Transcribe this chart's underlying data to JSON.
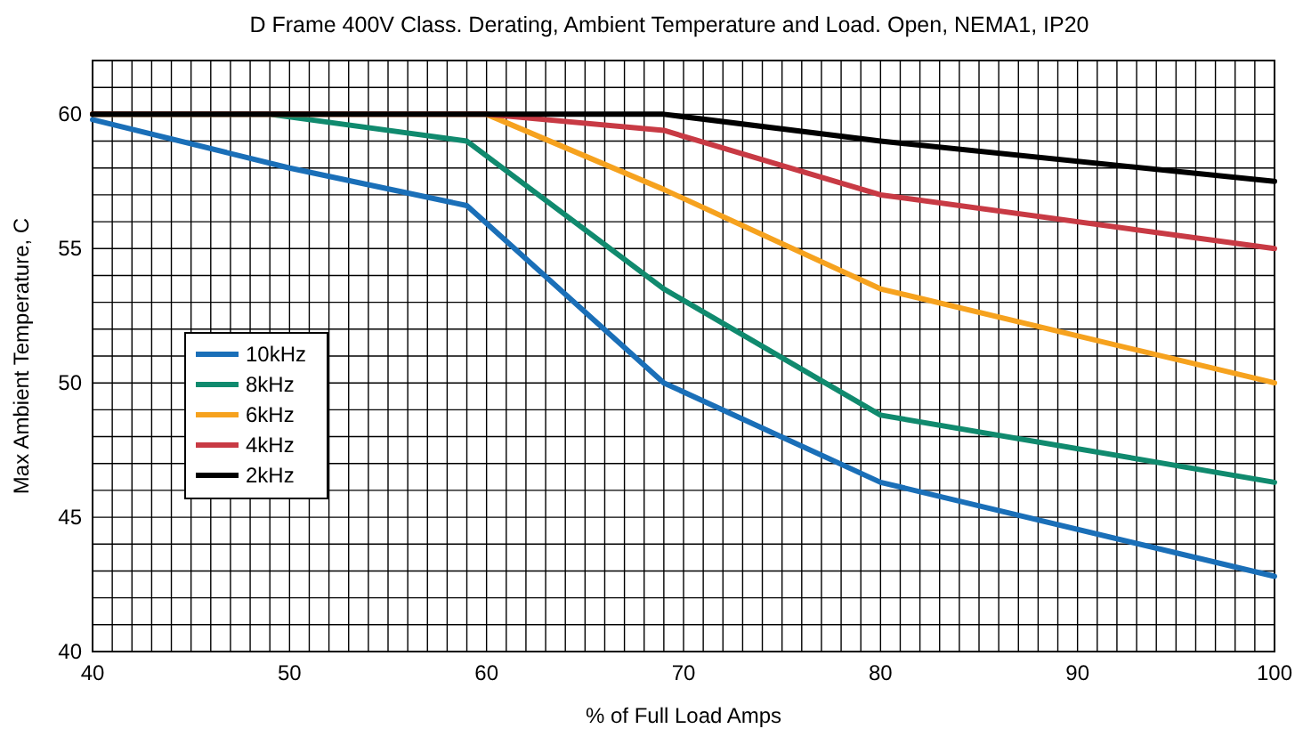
{
  "chart_data": {
    "type": "line",
    "title": "D Frame 400V Class. Derating, Ambient Temperature and Load. Open, NEMA1, IP20",
    "xlabel": "% of Full Load Amps",
    "ylabel": "Max Ambient Temperature, C",
    "xlim": [
      40,
      100
    ],
    "ylim": [
      40,
      62
    ],
    "xticks": [
      40,
      {
        "value": 41,
        "label": null
      },
      {
        "value": 42,
        "label": null
      },
      {
        "value": 43,
        "label": null
      },
      {
        "value": 44,
        "label": null
      },
      {
        "value": 45,
        "label": null
      },
      {
        "value": 46,
        "label": null
      },
      {
        "value": 47,
        "label": null
      },
      {
        "value": 48,
        "label": null
      },
      {
        "value": 49,
        "label": null
      },
      50,
      {
        "value": 51,
        "label": null
      },
      {
        "value": 52,
        "label": null
      },
      {
        "value": 53,
        "label": null
      },
      {
        "value": 54,
        "label": null
      },
      {
        "value": 55,
        "label": null
      },
      {
        "value": 56,
        "label": null
      },
      {
        "value": 57,
        "label": null
      },
      {
        "value": 58,
        "label": null
      },
      {
        "value": 59,
        "label": null
      },
      60,
      {
        "value": 61,
        "label": null
      },
      {
        "value": 62,
        "label": null
      },
      {
        "value": 63,
        "label": null
      },
      {
        "value": 64,
        "label": null
      },
      {
        "value": 65,
        "label": null
      },
      {
        "value": 66,
        "label": null
      },
      {
        "value": 67,
        "label": null
      },
      {
        "value": 68,
        "label": null
      },
      {
        "value": 69,
        "label": null
      },
      70,
      {
        "value": 71,
        "label": null
      },
      {
        "value": 72,
        "label": null
      },
      {
        "value": 73,
        "label": null
      },
      {
        "value": 74,
        "label": null
      },
      {
        "value": 75,
        "label": null
      },
      {
        "value": 76,
        "label": null
      },
      {
        "value": 77,
        "label": null
      },
      {
        "value": 78,
        "label": null
      },
      {
        "value": 79,
        "label": null
      },
      80,
      {
        "value": 81,
        "label": null
      },
      {
        "value": 82,
        "label": null
      },
      {
        "value": 83,
        "label": null
      },
      {
        "value": 84,
        "label": null
      },
      {
        "value": 85,
        "label": null
      },
      {
        "value": 86,
        "label": null
      },
      {
        "value": 87,
        "label": null
      },
      {
        "value": 88,
        "label": null
      },
      {
        "value": 89,
        "label": null
      },
      90,
      {
        "value": 91,
        "label": null
      },
      {
        "value": 92,
        "label": null
      },
      {
        "value": 93,
        "label": null
      },
      {
        "value": 94,
        "label": null
      },
      {
        "value": 95,
        "label": null
      },
      {
        "value": 96,
        "label": null
      },
      {
        "value": 97,
        "label": null
      },
      {
        "value": 98,
        "label": null
      },
      {
        "value": 99,
        "label": null
      },
      100
    ],
    "yticks": [
      40,
      {
        "value": 41,
        "label": null
      },
      {
        "value": 42,
        "label": null
      },
      {
        "value": 43,
        "label": null
      },
      {
        "value": 44,
        "label": null
      },
      45,
      {
        "value": 46,
        "label": null
      },
      {
        "value": 47,
        "label": null
      },
      {
        "value": 48,
        "label": null
      },
      {
        "value": 49,
        "label": null
      },
      50,
      {
        "value": 51,
        "label": null
      },
      {
        "value": 52,
        "label": null
      },
      {
        "value": 53,
        "label": null
      },
      {
        "value": 54,
        "label": null
      },
      55,
      {
        "value": 56,
        "label": null
      },
      {
        "value": 57,
        "label": null
      },
      {
        "value": 58,
        "label": null
      },
      {
        "value": 59,
        "label": null
      },
      60,
      {
        "value": 61,
        "label": null
      },
      {
        "value": 62,
        "label": null
      }
    ],
    "grid": true,
    "legend": "bottom left",
    "line_style": "solid",
    "marker": "none",
    "series": [
      {
        "name": "10kHz",
        "color": "#1a6fb8",
        "x": [
          40,
          50,
          59,
          69,
          80,
          100
        ],
        "values": [
          59.8,
          58,
          56.6,
          50,
          46.3,
          42.8
        ]
      },
      {
        "name": "8kHz",
        "color": "#108a6e",
        "x": [
          40,
          49,
          59,
          69,
          80,
          100
        ],
        "values": [
          60,
          60,
          59,
          53.5,
          48.8,
          46.3
        ]
      },
      {
        "name": "6kHz",
        "color": "#f6a21e",
        "x": [
          40,
          60,
          69,
          80,
          100
        ],
        "values": [
          60,
          60,
          57.2,
          53.5,
          50
        ]
      },
      {
        "name": "4kHz",
        "color": "#c83a44",
        "x": [
          40,
          60,
          69,
          80,
          100
        ],
        "values": [
          60,
          60,
          59.4,
          57,
          55
        ]
      },
      {
        "name": "2kHz",
        "color": "#000000",
        "x": [
          40,
          69,
          80,
          100
        ],
        "values": [
          60,
          60,
          59,
          57.5
        ]
      }
    ]
  }
}
